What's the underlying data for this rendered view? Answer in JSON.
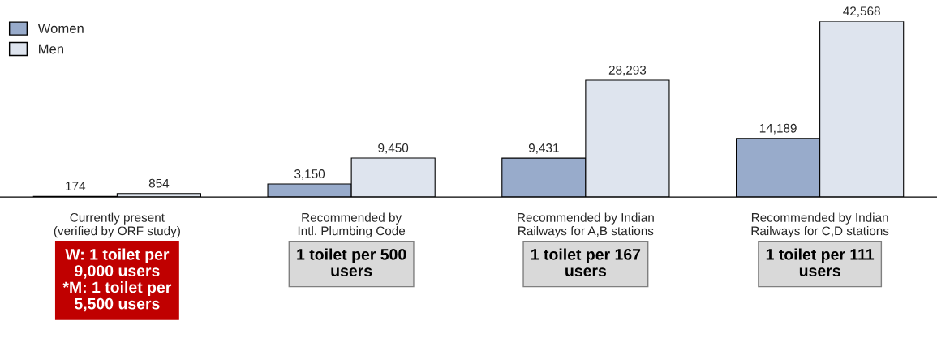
{
  "chart_data": {
    "type": "bar",
    "legend": "top left",
    "categories": [
      "Currently present\n(verified by ORF study)",
      "Recommended by\nIntl. Plumbing Code",
      "Recommended by Indian\nRailways for A,B stations",
      "Recommended by Indian\nRailways for C,D stations"
    ],
    "series": [
      {
        "name": "Women",
        "color": "#98abcb",
        "values": [
          174,
          3150,
          9431,
          14189
        ],
        "value_labels": [
          "174",
          "3,150",
          "9,431",
          "14,189"
        ]
      },
      {
        "name": "Men",
        "color": "#dee4ee",
        "values": [
          854,
          9450,
          28293,
          42568
        ],
        "value_labels": [
          "854",
          "9,450",
          "28,293",
          "42,568"
        ]
      }
    ],
    "annotations": [
      "W: 1 toilet per\n9,000 users\n*M: 1 toilet per\n5,500 users",
      "1 toilet per 500\nusers",
      "1 toilet per 167\nusers",
      "1 toilet per 111\nusers"
    ]
  }
}
